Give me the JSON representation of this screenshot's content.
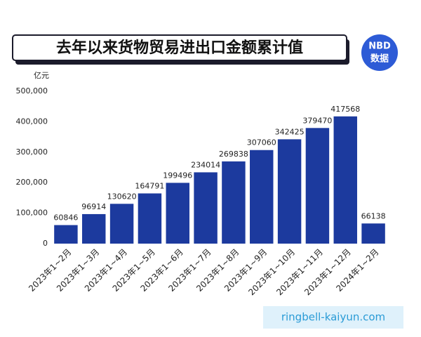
{
  "chart_data": {
    "type": "bar",
    "title": "去年以来货物贸易进出口金额累计值",
    "logo": [
      "NBD",
      "数据"
    ],
    "y_axis_label": "亿元",
    "categories": [
      "2023年1~2月",
      "2023年1~3月",
      "2023年1~4月",
      "2023年1~5月",
      "2023年1~6月",
      "2023年1~7月",
      "2023年1~8月",
      "2023年1~9月",
      "2023年1~10月",
      "2023年1~11月",
      "2023年1~12月",
      "2024年1~2月"
    ],
    "values": [
      60846,
      96914,
      130620,
      164791,
      199496,
      234014,
      269838,
      307060,
      342425,
      379470,
      417568,
      66138
    ],
    "color": "#1c3a9e",
    "ylim": [
      0,
      500000
    ],
    "yticks": [
      0,
      {
        "value": 100000,
        "label": "100,000"
      },
      {
        "value": 200000,
        "label": "200,000"
      },
      {
        "value": 300000,
        "label": "300,000"
      },
      {
        "value": 400000,
        "label": "400,000"
      },
      {
        "value": 500000,
        "label": "500,000"
      }
    ],
    "grid": false,
    "watermark": "ringbell-kaiyun.com"
  }
}
